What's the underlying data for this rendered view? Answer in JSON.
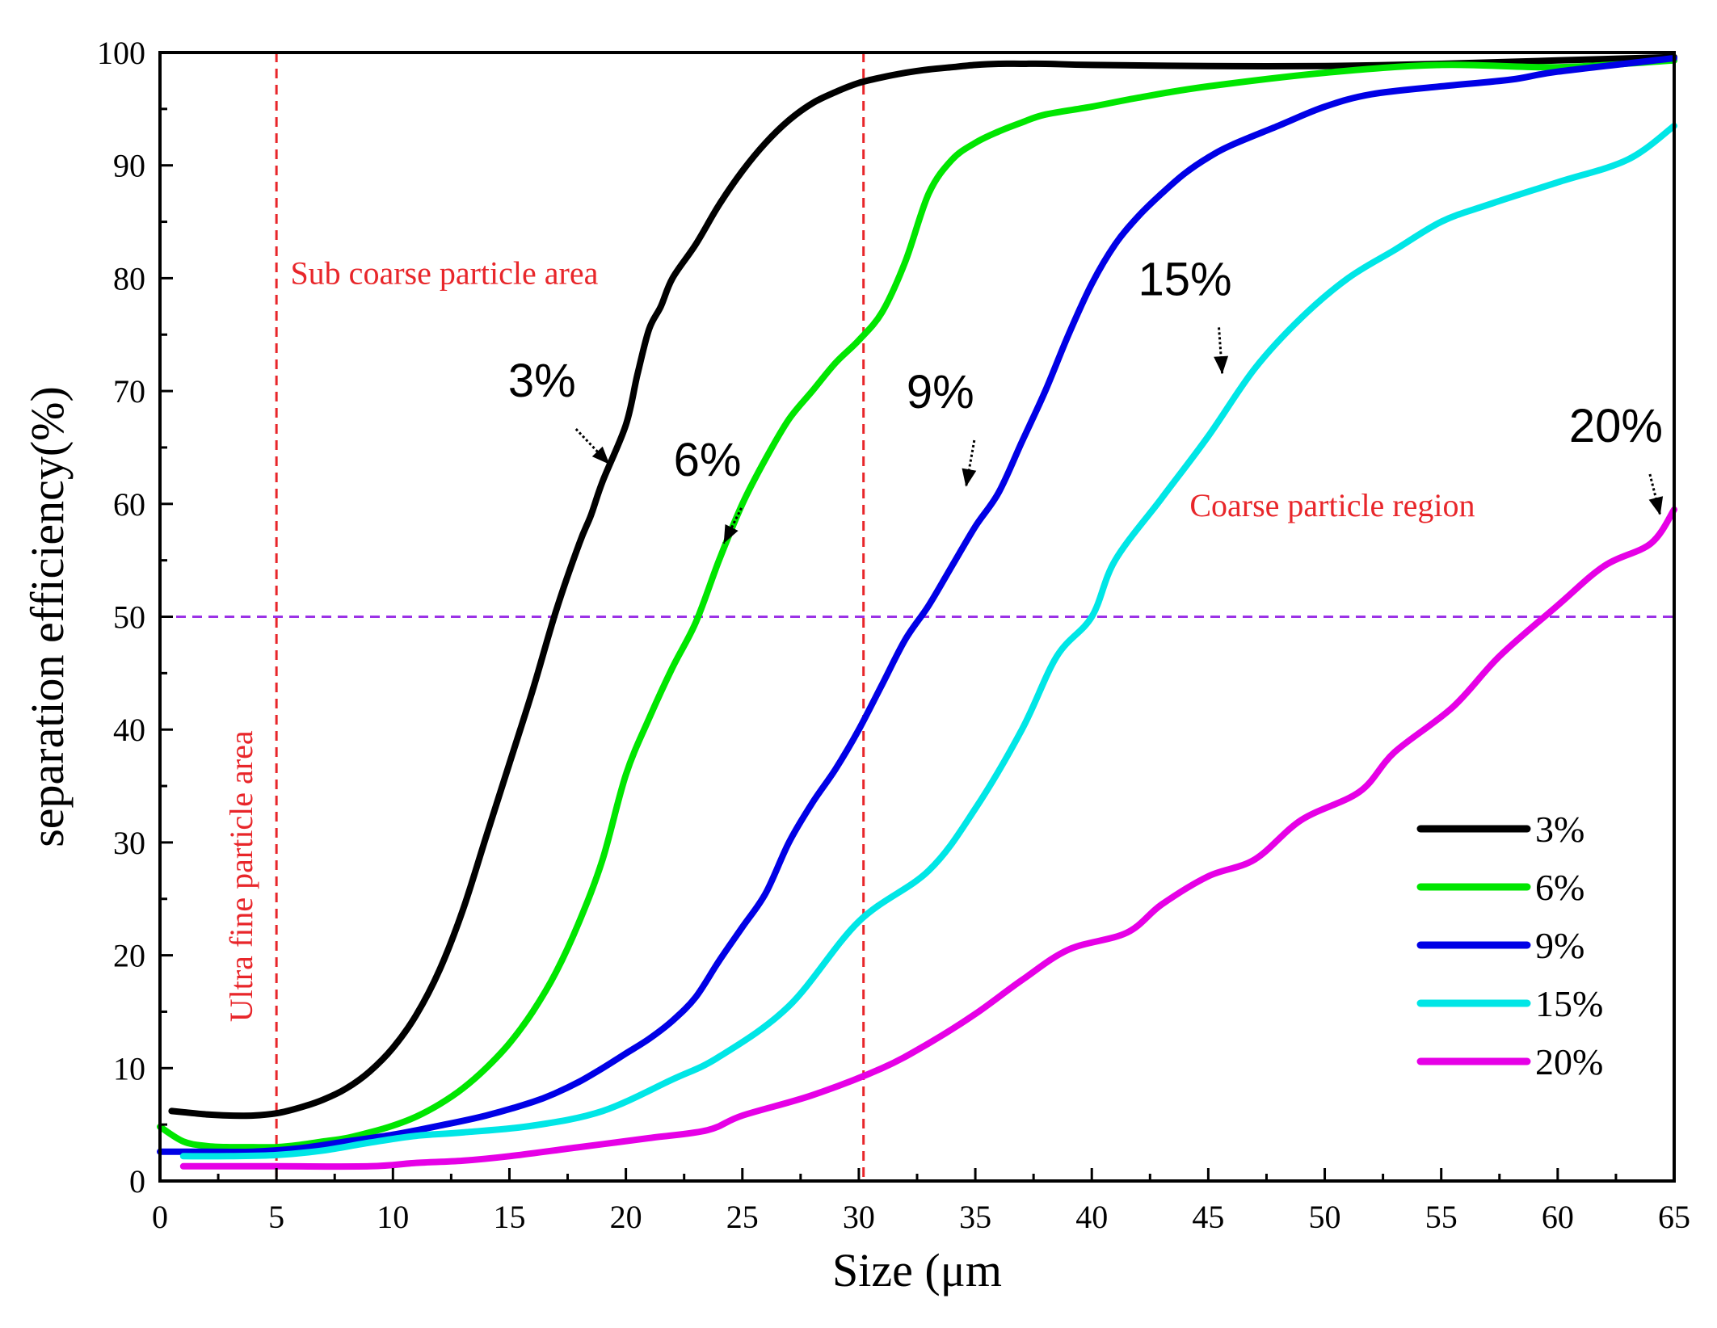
{
  "chart_data": {
    "type": "line",
    "xlabel": "Size",
    "xlabel_unit": "(μm",
    "ylabel": "separation efficiency(%)",
    "xlim": [
      0,
      65
    ],
    "ylim": [
      0,
      100
    ],
    "xticks": [
      0,
      5,
      10,
      15,
      20,
      25,
      30,
      35,
      40,
      45,
      50,
      55,
      60,
      65
    ],
    "yticks": [
      0,
      10,
      20,
      30,
      40,
      50,
      60,
      70,
      80,
      90,
      100
    ],
    "reference_lines": [
      {
        "orientation": "vertical",
        "value": 5,
        "color": "#e8262a"
      },
      {
        "orientation": "vertical",
        "value": 30.2,
        "color": "#e8262a"
      },
      {
        "orientation": "horizontal",
        "value": 50,
        "color": "#9b32e6"
      }
    ],
    "region_labels": [
      {
        "text": "Ultra fine particle area",
        "color": "#e8262a"
      },
      {
        "text": "Sub coarse particle area",
        "color": "#e8262a"
      },
      {
        "text": "Coarse particle region",
        "color": "#e8262a"
      }
    ],
    "annotations": [
      {
        "text": "3%",
        "x": 16.4,
        "y": 69.5,
        "arrow_to": [
          19.3,
          63.5
        ]
      },
      {
        "text": "6%",
        "x": 23.5,
        "y": 62.5,
        "arrow_to": [
          24.2,
          56.5
        ]
      },
      {
        "text": "9%",
        "x": 33.5,
        "y": 68.5,
        "arrow_to": [
          34.6,
          61.5
        ]
      },
      {
        "text": "15%",
        "x": 44.0,
        "y": 78.5,
        "arrow_to": [
          45.6,
          71.5
        ]
      },
      {
        "text": "20%",
        "x": 62.5,
        "y": 65.5,
        "arrow_to": [
          64.4,
          59.0
        ]
      }
    ],
    "series": [
      {
        "name": "3%",
        "color": "#000000",
        "x": [
          0.5,
          1,
          2,
          3,
          4,
          5,
          6,
          7,
          8,
          9,
          10,
          11,
          12,
          13,
          14,
          15,
          16,
          17,
          18,
          18.5,
          19,
          20,
          20.5,
          21,
          21.5,
          22,
          23,
          24,
          25,
          26,
          27,
          28,
          29,
          30,
          31,
          32,
          33,
          34,
          35,
          36,
          37,
          38,
          40,
          45,
          50,
          55,
          60,
          65
        ],
        "values": [
          6.2,
          6.1,
          5.9,
          5.8,
          5.8,
          6.0,
          6.5,
          7.2,
          8.2,
          9.7,
          11.8,
          14.7,
          18.7,
          24.0,
          30.5,
          37.0,
          43.5,
          50.5,
          56.5,
          59.0,
          62.0,
          67.0,
          71.5,
          75.5,
          77.5,
          80.0,
          83.0,
          86.5,
          89.5,
          92.0,
          94.0,
          95.5,
          96.5,
          97.3,
          97.8,
          98.2,
          98.5,
          98.7,
          98.9,
          99.0,
          99.0,
          99.0,
          98.9,
          98.8,
          98.8,
          99.0,
          99.3,
          99.6
        ]
      },
      {
        "name": "6%",
        "color": "#00e600",
        "x": [
          0,
          1,
          2,
          3,
          4,
          5,
          6,
          7,
          8,
          9,
          10,
          11,
          12,
          13,
          14,
          15,
          16,
          17,
          18,
          19,
          20,
          21,
          22,
          23,
          24,
          25,
          26,
          27,
          28,
          29,
          30,
          31,
          32,
          33,
          34,
          35,
          36,
          37,
          38,
          40,
          42,
          45,
          50,
          55,
          60,
          65
        ],
        "values": [
          4.8,
          3.5,
          3.1,
          3.0,
          3.0,
          3.0,
          3.2,
          3.5,
          3.8,
          4.3,
          4.9,
          5.7,
          6.8,
          8.2,
          10.0,
          12.2,
          15.0,
          18.5,
          23.0,
          28.5,
          36.0,
          41.0,
          45.5,
          49.5,
          55.0,
          60.0,
          64.0,
          67.5,
          70.0,
          72.5,
          74.5,
          77.0,
          81.5,
          87.5,
          90.5,
          92.0,
          93.0,
          93.8,
          94.5,
          95.2,
          96.0,
          97.0,
          98.2,
          98.9,
          98.7,
          99.3
        ]
      },
      {
        "name": "9%",
        "color": "#0000e6",
        "x": [
          0,
          2,
          4,
          6,
          8,
          10,
          12,
          14,
          16,
          17,
          18,
          19,
          20,
          21,
          22,
          23,
          24,
          25,
          26,
          27,
          28,
          29,
          30,
          31,
          32,
          33,
          34,
          35,
          36,
          37,
          38,
          39,
          40,
          41,
          42,
          43,
          44,
          45,
          46,
          48,
          50,
          52,
          55,
          58,
          60,
          65
        ],
        "values": [
          2.6,
          2.6,
          2.6,
          2.9,
          3.5,
          4.1,
          4.9,
          5.8,
          7.0,
          7.8,
          8.8,
          10.0,
          11.3,
          12.6,
          14.2,
          16.3,
          19.5,
          22.5,
          25.5,
          30.0,
          33.5,
          36.5,
          40.0,
          44.0,
          48.0,
          51.0,
          54.5,
          58.0,
          61.0,
          65.5,
          70.0,
          75.0,
          79.5,
          83.0,
          85.5,
          87.5,
          89.3,
          90.7,
          91.8,
          93.5,
          95.2,
          96.3,
          97.0,
          97.6,
          98.3,
          99.5
        ]
      },
      {
        "name": "15%",
        "color": "#00e6e6",
        "x": [
          1,
          3,
          5,
          7,
          9,
          11,
          13,
          16,
          19,
          22,
          24,
          27,
          30,
          33,
          35,
          37,
          38.5,
          40,
          41,
          43,
          45,
          47,
          49,
          51,
          53,
          55,
          57,
          60,
          63,
          65
        ],
        "values": [
          2.2,
          2.2,
          2.3,
          2.7,
          3.4,
          4.0,
          4.3,
          4.9,
          6.2,
          9.0,
          11.0,
          15.5,
          23.0,
          27.5,
          33.0,
          40.0,
          46.5,
          50.0,
          55.0,
          60.5,
          66.0,
          72.0,
          76.5,
          80.0,
          82.5,
          85.0,
          86.5,
          88.5,
          90.5,
          93.5
        ]
      },
      {
        "name": "20%",
        "color": "#e600e6",
        "x": [
          1,
          5,
          9,
          11,
          13,
          15,
          18,
          21,
          23.5,
          25,
          28,
          31,
          33,
          35,
          37,
          39,
          41.5,
          43,
          45,
          47,
          49,
          51.5,
          53,
          55.5,
          57.5,
          60,
          62,
          64,
          65
        ],
        "values": [
          1.3,
          1.3,
          1.3,
          1.6,
          1.8,
          2.2,
          3.0,
          3.8,
          4.5,
          5.8,
          7.6,
          10.0,
          12.2,
          14.8,
          17.8,
          20.5,
          22.0,
          24.5,
          27.0,
          28.5,
          32.0,
          34.5,
          38.0,
          42.0,
          46.5,
          51.0,
          54.5,
          56.5,
          59.5
        ]
      }
    ]
  }
}
